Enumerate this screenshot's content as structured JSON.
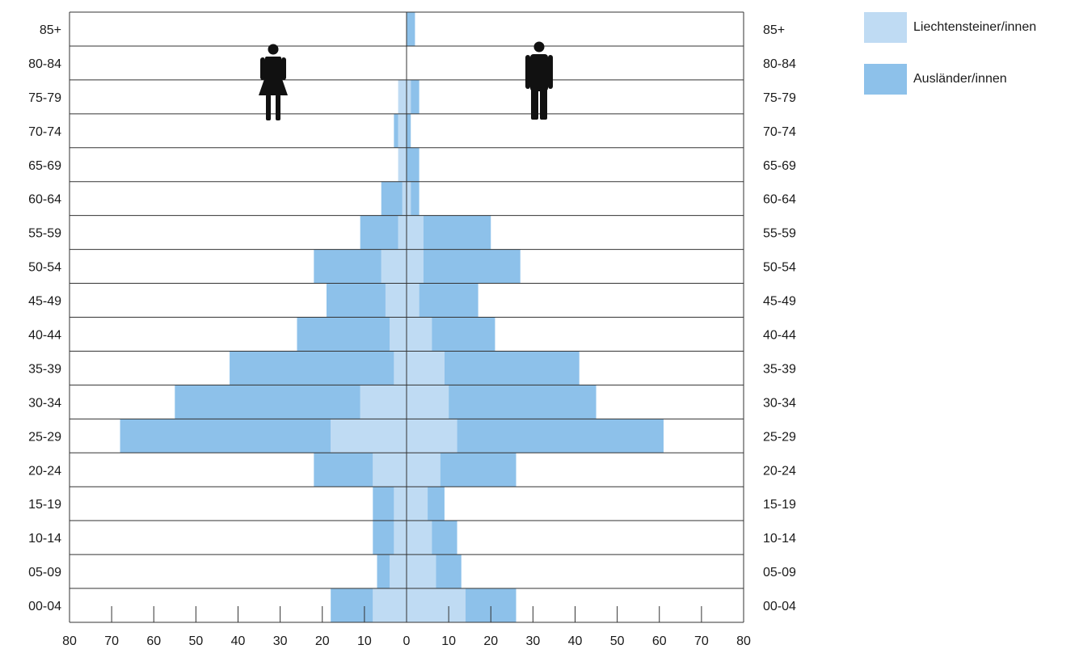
{
  "colors": {
    "liechtensteiner": "#bfdbf3",
    "auslaender": "#8dc1ea",
    "grid": "#333333"
  },
  "legend": [
    {
      "label": "Liechtensteiner/innen",
      "color_key": "liechtensteiner"
    },
    {
      "label": "Ausländer/innen",
      "color_key": "auslaender"
    }
  ],
  "icons": {
    "left": "female-figure-icon",
    "right": "male-figure-icon"
  },
  "chart_data": {
    "type": "bar",
    "orientation": "population-pyramid",
    "title": "",
    "xlabel": "",
    "ylabel": "",
    "xlim": [
      -80,
      80
    ],
    "x_ticks": [
      80,
      70,
      60,
      50,
      40,
      30,
      20,
      10,
      0,
      10,
      20,
      30,
      40,
      50,
      60,
      70,
      80
    ],
    "grid": true,
    "legend_position": "top-right",
    "categories": [
      "00-04",
      "05-09",
      "10-14",
      "15-19",
      "20-24",
      "25-29",
      "30-34",
      "35-39",
      "40-44",
      "45-49",
      "50-54",
      "55-59",
      "60-64",
      "65-69",
      "70-74",
      "75-79",
      "80-84",
      "85+"
    ],
    "series": [
      {
        "name": "Liechtensteiner/innen",
        "side": "female",
        "values": [
          8,
          4,
          3,
          3,
          8,
          18,
          11,
          3,
          4,
          5,
          6,
          2,
          1,
          2,
          2,
          2,
          0,
          0
        ]
      },
      {
        "name": "Ausländer/innen",
        "side": "female",
        "values": [
          10,
          3,
          5,
          5,
          14,
          50,
          44,
          39,
          22,
          14,
          16,
          9,
          5,
          0,
          1,
          0,
          0,
          0
        ]
      },
      {
        "name": "Liechtensteiner/innen",
        "side": "male",
        "values": [
          14,
          7,
          6,
          5,
          8,
          12,
          10,
          9,
          6,
          3,
          4,
          4,
          1,
          0,
          0,
          1,
          0,
          0
        ]
      },
      {
        "name": "Ausländer/innen",
        "side": "male",
        "values": [
          12,
          6,
          6,
          4,
          18,
          49,
          35,
          32,
          15,
          14,
          23,
          16,
          2,
          3,
          1,
          2,
          0,
          2
        ]
      }
    ]
  }
}
